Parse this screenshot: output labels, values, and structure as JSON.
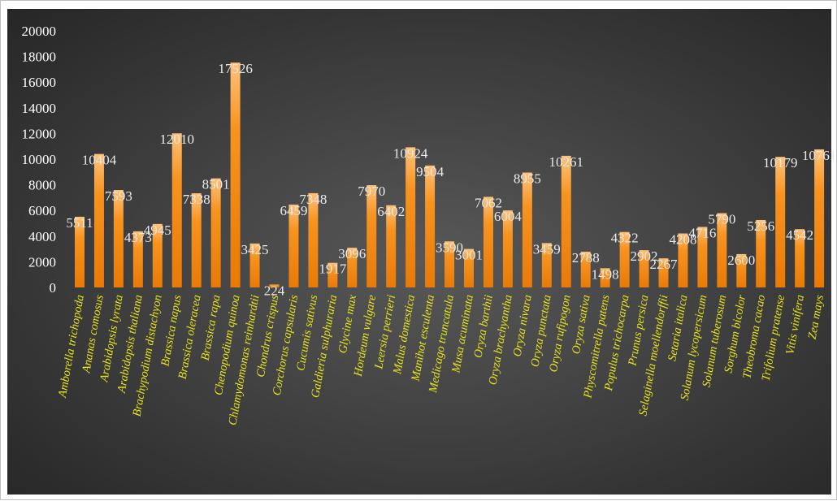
{
  "chart_data": {
    "type": "bar",
    "categories": [
      "Amborella trichopoda",
      "Ananas comosus",
      "Arabidopsis lyrata",
      "Arabidopsis thaliana",
      "Brachypodium distachyon",
      "Brassica napus",
      "Brassica oleracea",
      "Brassica rapa",
      "Chenopodium quinoa",
      "Chlamydomonas reinhardtii",
      "Chondrus crispus",
      "Corchorus capsularis",
      "Cucumis sativus",
      "Galdieria sulphuraria",
      "Glycine max",
      "Hordeum vulgare",
      "Leersia perrieri",
      "Malus domestica",
      "Manihot esculenta",
      "Medicago truncatula",
      "Musa acuminata",
      "Oryza barthii",
      "Oryza brachyantha",
      "Oryza nivara",
      "Oryza punctata",
      "Oryza rufipogon",
      "Oryza sativa",
      "Physcomitrella patens",
      "Populus trichocarpa",
      "Prunus persica",
      "Selaginella moellendorffii",
      "Setaria italica",
      "Solanum lycopersicum",
      "Solanum tuberosum",
      "Sorghum bicolor",
      "Theobroma cacao",
      "Trifolium pratense",
      "Vitis vinifera",
      "Zea mays"
    ],
    "values": [
      5511,
      10404,
      7593,
      4373,
      4945,
      12010,
      7338,
      8501,
      17526,
      3425,
      224,
      6459,
      7348,
      1917,
      3096,
      7970,
      6402,
      10924,
      9504,
      3590,
      3001,
      7062,
      6004,
      8955,
      3459,
      10261,
      2788,
      1498,
      4322,
      2902,
      2267,
      4208,
      4716,
      5790,
      2600,
      5256,
      10179,
      4542,
      10761
    ],
    "data_labels": [
      "5511",
      "10404",
      "7593",
      "4373",
      "4945",
      "12010",
      "7338",
      "8501",
      "17526",
      "3425",
      "224",
      "6459",
      "7348",
      "1917",
      "3096",
      "7970",
      "6402",
      "10924",
      "9504",
      "3590",
      "3001",
      "7062",
      "6004",
      "8955",
      "3459",
      "10261",
      "2788",
      "1498",
      "4322",
      "2902",
      "2267",
      "4208",
      "4716",
      "5790",
      "2600",
      "5256",
      "10179",
      "4542",
      "10761"
    ],
    "yticks": [
      "0",
      "2000",
      "4000",
      "6000",
      "8000",
      "10000",
      "12000",
      "14000",
      "16000",
      "18000",
      "20000"
    ],
    "ylim": [
      0,
      20000
    ],
    "grid": false,
    "legend": "none",
    "colors": {
      "bar_top": "#ffc27a",
      "bar_mid": "#f7931f",
      "bar_bottom": "#e87a08",
      "category_label": "#e9e51c",
      "value_label": "#eaeaea",
      "tick_label": "#ffffff"
    }
  }
}
